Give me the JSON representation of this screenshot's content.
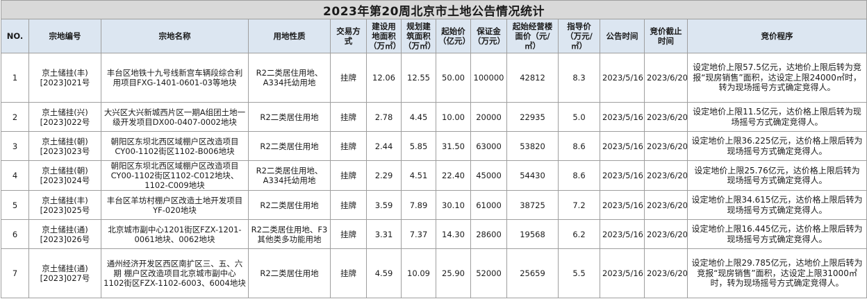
{
  "title": "2023年第20周北京市土地公告情况统计",
  "headers": [
    "NO.",
    "宗地编号",
    "宗地名称",
    "用地性质",
    "交易方式",
    "建设用地面积（万㎡）",
    "规划建筑面积（万㎡）",
    "起始价（亿元）",
    "保证金（万元）",
    "起始经营楼面价（元/㎡）",
    "指导价（万元/㎡）",
    "公告时间",
    "竞价截止时间",
    "竞价程序"
  ],
  "rows": [
    {
      "no": "1",
      "code": "京土储挂(丰)[2023]021号",
      "name": "丰台区地铁十九号线新宫车辆段综合利用项目FXG-1401-0601-03等地块",
      "use": "R2二类居住用地、A334托幼用地",
      "method": "挂牌",
      "land_area": "12.06",
      "build_area": "12.55",
      "start_price": "50.00",
      "deposit": "100000",
      "floor_price": "42812",
      "guide_price": "8.3",
      "announce": "2023/5/16",
      "deadline": "2023/6/20",
      "procedure": "设定地价上限57.5亿元，达地价上限后转为竞报“现房销售”面积，达设定上限24000㎡时，转为现场摇号方式确定竞得人。"
    },
    {
      "no": "2",
      "code": "京土储挂(兴)[2023]022号",
      "name": "大兴区大兴新城西片区一期A组团土地一级开发项目DX00-0407-0002地块",
      "use": "R2二类居住用地",
      "method": "挂牌",
      "land_area": "2.78",
      "build_area": "4.45",
      "start_price": "10.00",
      "deposit": "20000",
      "floor_price": "22935",
      "guide_price": "5.0",
      "announce": "2023/5/16",
      "deadline": "2023/6/20",
      "procedure": "设定地价上限11.5亿元，达价格上限后转为现场摇号方式确定竞得人。"
    },
    {
      "no": "3",
      "code": "京土储挂(朝)[2023]023号",
      "name": "朝阳区东坝北西区域棚户区改造项目CY00-1102街区1102-B006地块",
      "use": "R2二类居住用地",
      "method": "挂牌",
      "land_area": "2.44",
      "build_area": "5.85",
      "start_price": "31.50",
      "deposit": "63000",
      "floor_price": "53820",
      "guide_price": "8.6",
      "announce": "2023/5/16",
      "deadline": "2023/6/20",
      "procedure": "设定地价上限36.225亿元，达价格上限后转为现场摇号方式确定竞得人。"
    },
    {
      "no": "4",
      "code": "京土储挂(朝)[2023]024号",
      "name": "朝阳区东坝北西区域棚户区改造项目CY00-1102街区1102-C012地块、1102-C009地块",
      "use": "R2二类居住用地、A334托幼用地",
      "method": "挂牌",
      "land_area": "2.29",
      "build_area": "4.51",
      "start_price": "22.40",
      "deposit": "45000",
      "floor_price": "54430",
      "guide_price": "8.6",
      "announce": "2023/5/16",
      "deadline": "2023/6/20",
      "procedure": "设定地价上限25.76亿元，达价格上限后转为现场摇号方式确定竞得人。"
    },
    {
      "no": "5",
      "code": "京土储挂(丰)[2023]025号",
      "name": "丰台区羊坊村棚户区改造土地开发项目YF-020地块",
      "use": "R2二类居住用地",
      "method": "挂牌",
      "land_area": "3.59",
      "build_area": "7.89",
      "start_price": "30.10",
      "deposit": "61000",
      "floor_price": "38725",
      "guide_price": "7.2",
      "announce": "2023/5/16",
      "deadline": "2023/6/20",
      "procedure": "设定地价上限34.615亿元，达价格上限后转为现场摇号方式确定竞得人。"
    },
    {
      "no": "6",
      "code": "京土储挂(通)[2023]026号",
      "name": "北京城市副中心1201街区FZX-1201-0061地块、0062地块",
      "use": "R2二类居住用地、F3其他类多功能用地",
      "method": "挂牌",
      "land_area": "3.31",
      "build_area": "7.37",
      "start_price": "14.30",
      "deposit": "28600",
      "floor_price": "19568",
      "guide_price": "6.2",
      "announce": "2023/5/16",
      "deadline": "2023/6/20",
      "procedure": "设定地价上限16.445亿元，达价格上限后转为现场摇号方式确定竞得人。"
    },
    {
      "no": "7",
      "code": "京土储挂(通)[2023]027号",
      "name": "通州经济开发区西区南扩区三、五、六期 棚户区改造项目北京城市副中心1102街区FZX-1102-6003、6004地块",
      "use": "R2二类居住用地",
      "method": "挂牌",
      "land_area": "4.59",
      "build_area": "10.09",
      "start_price": "25.90",
      "deposit": "52000",
      "floor_price": "25659",
      "guide_price": "5.5",
      "announce": "2023/5/16",
      "deadline": "2023/6/20",
      "procedure": "设定地价上限29.785亿元，达地价上限后转为竞报“现房销售”面积，达设定上限31000㎡时，转为现场摇号方式确定竞得人。"
    }
  ]
}
